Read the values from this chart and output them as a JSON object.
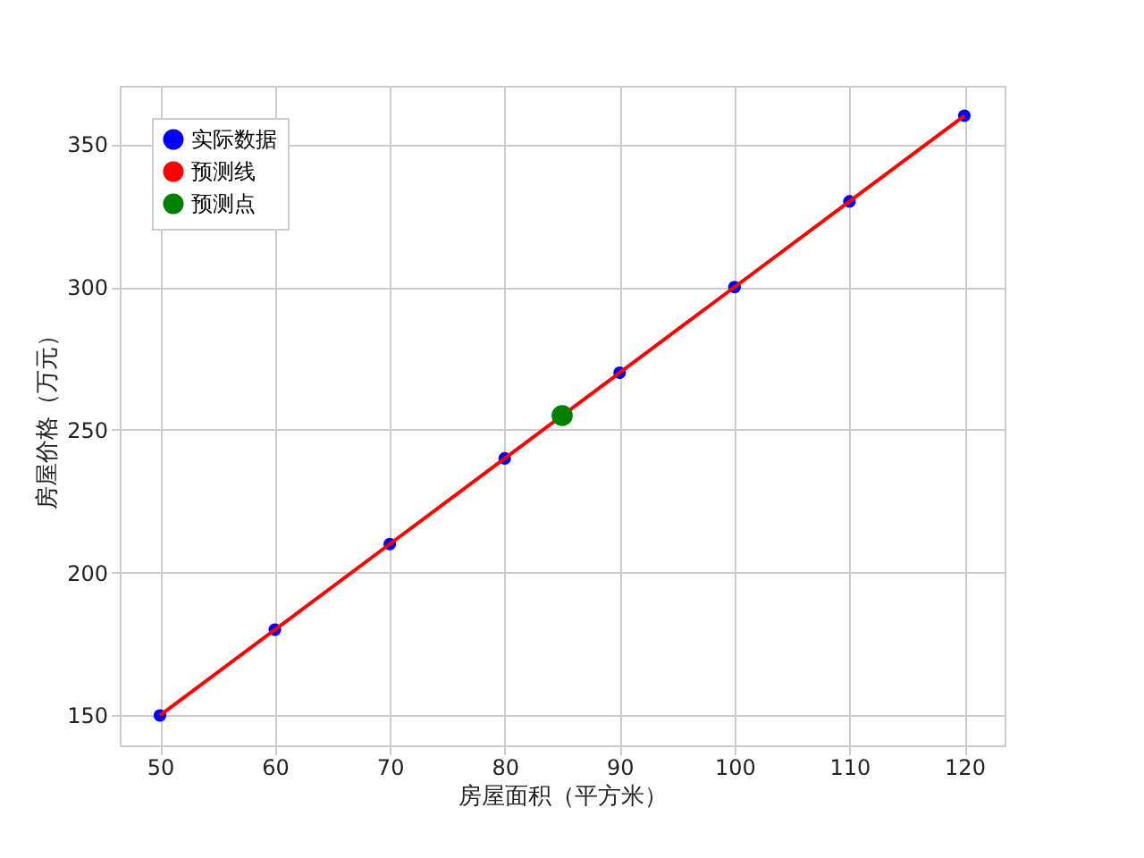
{
  "chart_data": {
    "type": "scatter",
    "xlabel": "房屋面积（平方米）",
    "ylabel": "房屋价格（万元）",
    "series": [
      {
        "name": "实际数据",
        "color": "#0000ff",
        "marker": "circle",
        "x": [
          50,
          60,
          70,
          80,
          90,
          100,
          110,
          120
        ],
        "values": [
          150,
          180,
          210,
          240,
          270,
          300,
          330,
          360
        ]
      },
      {
        "name": "预测线",
        "type": "line",
        "color": "#ff0000",
        "marker": "none",
        "x": [
          50,
          60,
          70,
          80,
          90,
          100,
          110,
          120
        ],
        "values": [
          150,
          180,
          210,
          240,
          270,
          300,
          330,
          360
        ]
      },
      {
        "name": "预测点",
        "color": "#008000",
        "marker": "circle",
        "x": [
          85
        ],
        "values": [
          255
        ]
      }
    ],
    "xlim": [
      46.5,
      123.5
    ],
    "xticks": [
      50,
      60,
      70,
      80,
      90,
      100,
      110,
      120
    ],
    "ylim": [
      139.5,
      370.5
    ],
    "yticks": [
      150,
      200,
      250,
      300,
      350
    ],
    "grid": true,
    "legend": "top left"
  }
}
